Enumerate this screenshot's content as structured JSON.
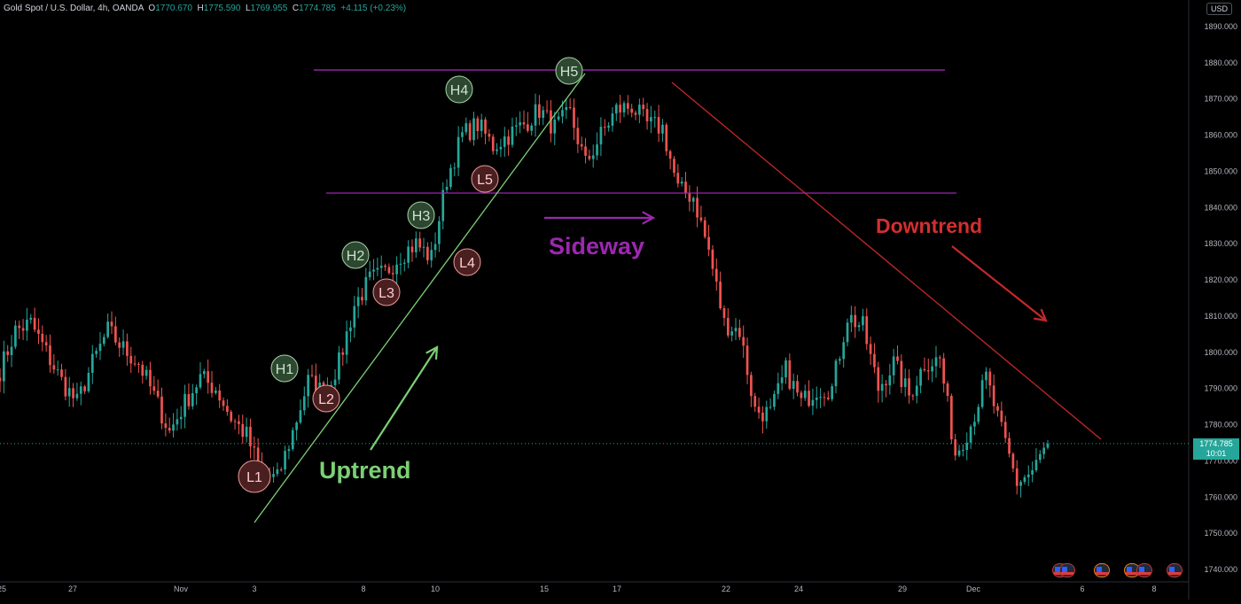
{
  "header": {
    "symbol": "Gold Spot / U.S. Dollar, 4h, OANDA",
    "o_label": "O",
    "o": "1770.670",
    "h_label": "H",
    "h": "1775.590",
    "l_label": "L",
    "l": "1769.955",
    "c_label": "C",
    "c": "1774.785",
    "change": "+4.115 (+0.23%)"
  },
  "currency": "USD",
  "price_tag": {
    "price": "1774.785",
    "countdown": "10:01"
  },
  "colors": {
    "up": "#26a69a",
    "down": "#ef5350",
    "uptrend": "#7bd074",
    "sideway": "#9c27b0",
    "downtrend": "#c62828",
    "axis_text": "#b2b5be"
  },
  "chart_data": {
    "type": "candlestick",
    "title": "",
    "xlabel": "",
    "ylabel": "",
    "ylim": [
      1733,
      1895
    ],
    "y_ticks": [
      "1740.000",
      "1750.000",
      "1760.000",
      "1770.000",
      "1780.000",
      "1790.000",
      "1800.000",
      "1810.000",
      "1820.000",
      "1830.000",
      "1840.000",
      "1850.000",
      "1860.000",
      "1870.000",
      "1880.000",
      "1890.000"
    ],
    "x_tick_labels": [
      "25",
      "27",
      "Nov",
      "3",
      "8",
      "10",
      "15",
      "17",
      "22",
      "24",
      "29",
      "Dec",
      "6",
      "8"
    ],
    "grid": false,
    "anchor_prices": [
      1795,
      1806,
      1808,
      1800,
      1792,
      1786,
      1797,
      1806,
      1801,
      1797,
      1788,
      1778,
      1786,
      1793,
      1790,
      1782,
      1777,
      1766,
      1765,
      1778,
      1792,
      1789,
      1797,
      1813,
      1820,
      1822,
      1827,
      1830,
      1826,
      1848,
      1860,
      1863,
      1857,
      1860,
      1863,
      1867,
      1862,
      1866,
      1852,
      1860,
      1867,
      1868,
      1863,
      1862,
      1845,
      1843,
      1828,
      1808,
      1806,
      1784,
      1783,
      1795,
      1786,
      1790,
      1790,
      1810,
      1807,
      1790,
      1797,
      1788,
      1797,
      1798,
      1772,
      1780,
      1793,
      1778,
      1764,
      1767,
      1774.785
    ],
    "annotations": [
      "L1",
      "H1",
      "L2",
      "H2",
      "L3",
      "H3",
      "L4",
      "H4",
      "L5",
      "H5",
      "Uptrend",
      "Sideway",
      "Downtrend"
    ],
    "levels": {
      "resistance": 1878,
      "support": 1844,
      "current": 1774.785
    }
  }
}
